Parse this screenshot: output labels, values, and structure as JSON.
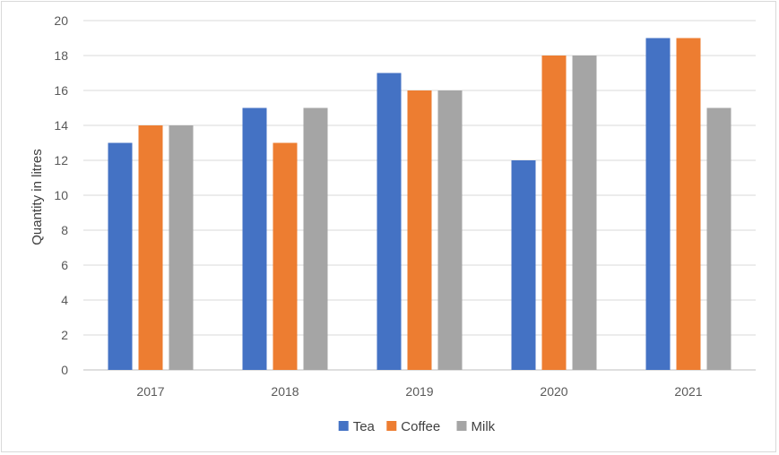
{
  "chart_data": {
    "type": "bar",
    "title": "",
    "xlabel": "",
    "ylabel": "Quantity in litres",
    "categories": [
      "2017",
      "2018",
      "2019",
      "2020",
      "2021"
    ],
    "series": [
      {
        "name": "Tea",
        "color": "#4472c4",
        "values": [
          13,
          15,
          17,
          12,
          19
        ]
      },
      {
        "name": "Coffee",
        "color": "#ed7d31",
        "values": [
          14,
          13,
          16,
          18,
          19
        ]
      },
      {
        "name": "Milk",
        "color": "#a5a5a5",
        "values": [
          14,
          15,
          16,
          18,
          15
        ]
      }
    ],
    "ylim": [
      0,
      20
    ],
    "yticks": [
      "0",
      "2",
      "4",
      "6",
      "8",
      "10",
      "12",
      "14",
      "16",
      "18",
      "20"
    ],
    "grid": true,
    "legend_position": "bottom"
  }
}
